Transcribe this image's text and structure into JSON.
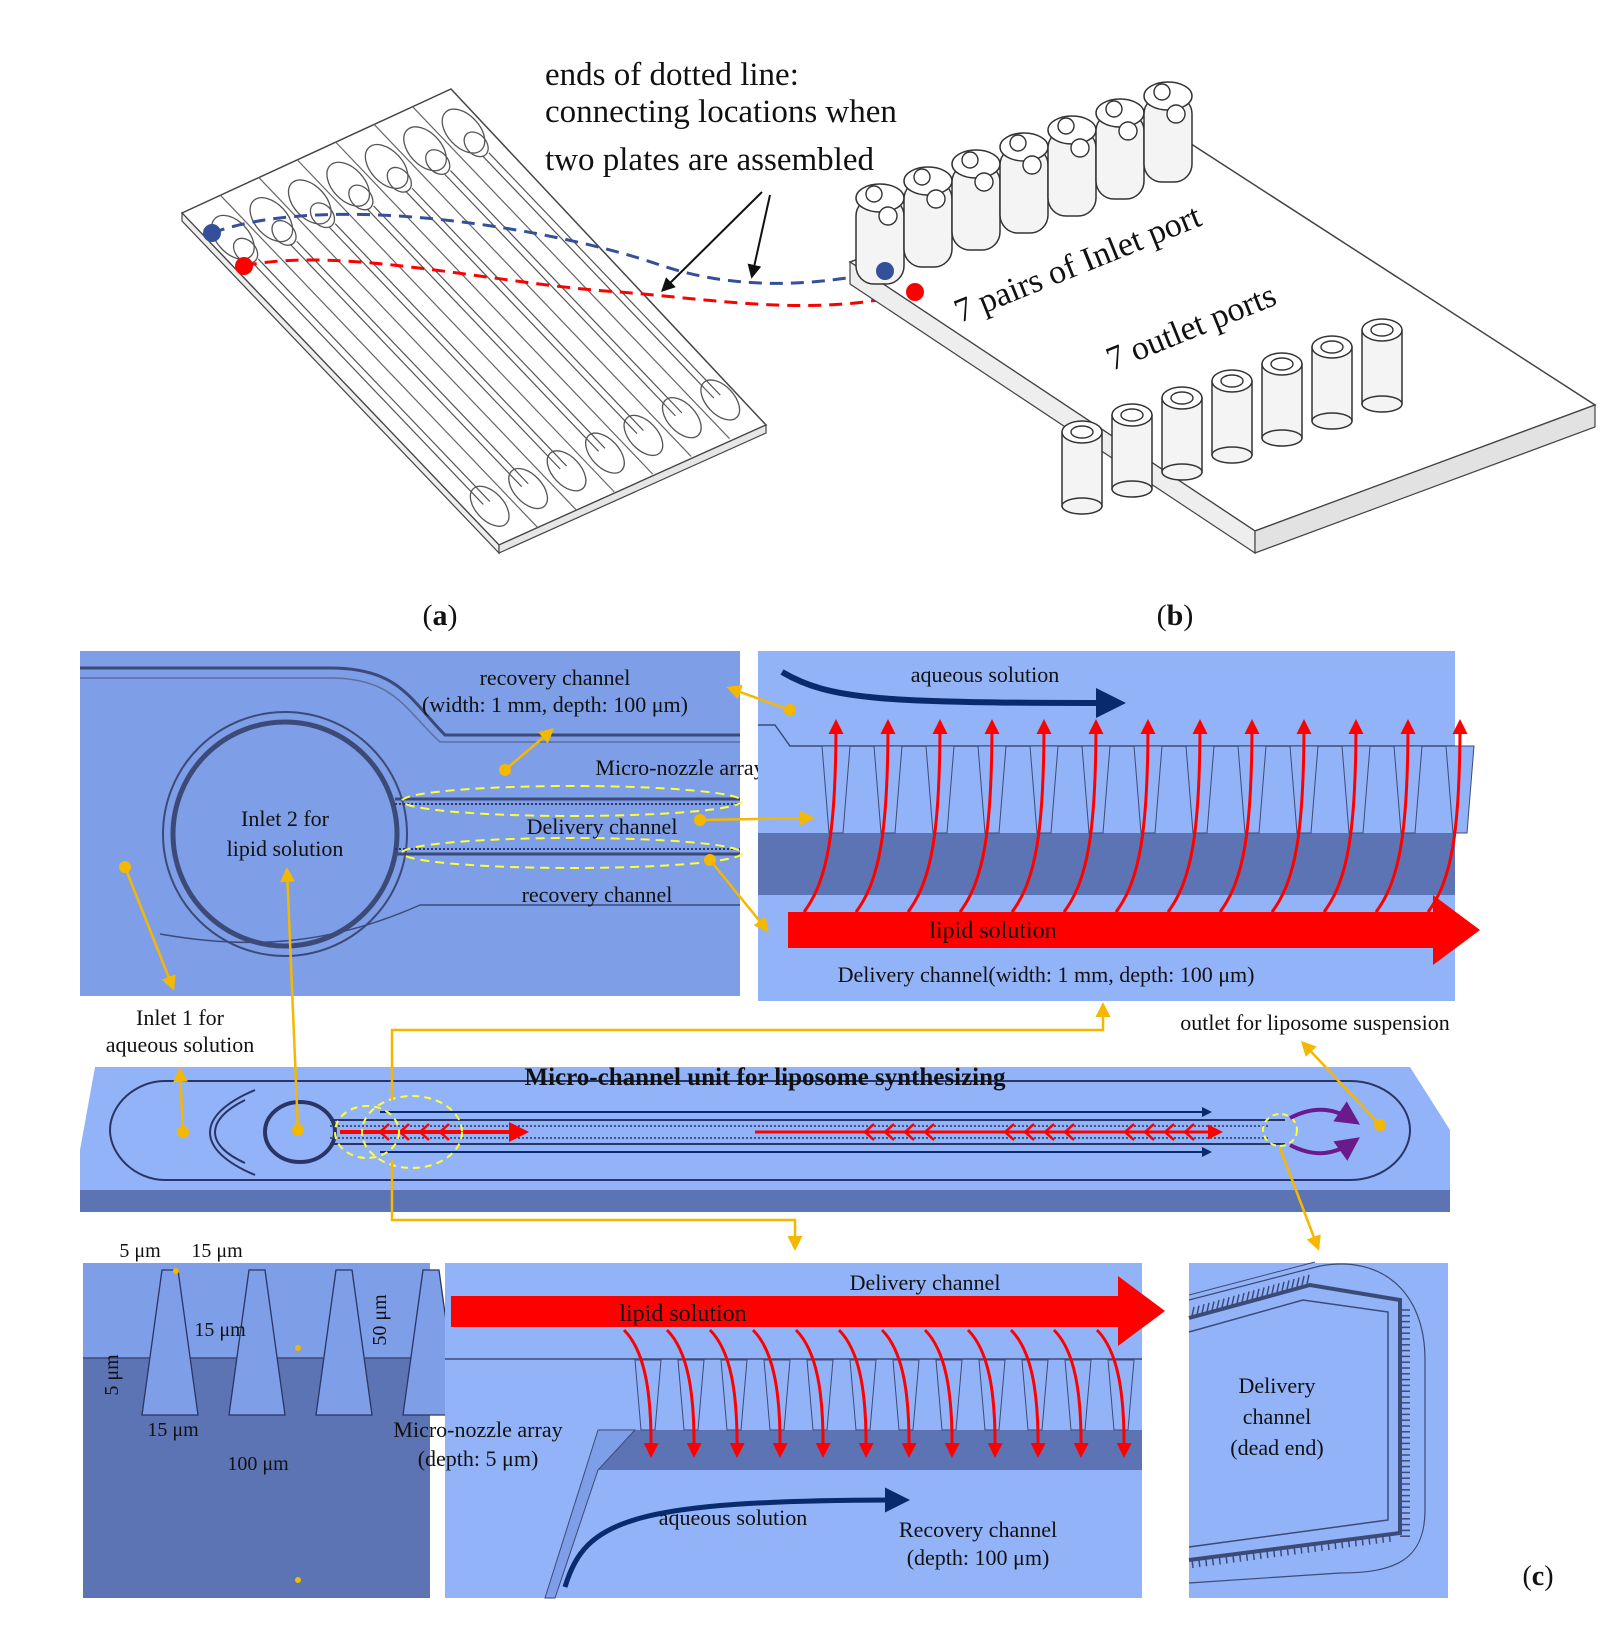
{
  "panel_a": {
    "annotation": [
      "ends of dotted line:",
      "connecting locations when",
      "two plates are assembled"
    ],
    "label_open": "(",
    "label_letter": "a",
    "label_close": ")"
  },
  "panel_b": {
    "inlet_text": "7 pairs of Inlet port",
    "outlet_text": "7 outlet ports",
    "label_open": "(",
    "label_letter": "b",
    "label_close": ")"
  },
  "panel_c": {
    "top_left": {
      "recovery_top_1": "recovery channel",
      "recovery_top_2": "(width: 1 mm, depth: 100 μm)",
      "micro_nozzle": "Micro-nozzle array",
      "inlet2_1": "Inlet 2 for",
      "inlet2_2": "lipid solution",
      "delivery": "Delivery channel",
      "recovery_bottom": "recovery channel"
    },
    "top_right": {
      "aqueous": "aqueous solution",
      "lipid": "lipid solution",
      "delivery": "Delivery channel(width: 1 mm, depth: 100 μm)"
    },
    "middle": {
      "inlet1_1": "Inlet 1 for",
      "inlet1_2": "aqueous solution",
      "outlet": "outlet for  liposome suspension",
      "title": "Micro-channel unit for liposome synthesizing"
    },
    "bottom_left": {
      "dim_5_top": "5 μm",
      "dim_15_top": "15 μm",
      "dim_15_mid": "15 μm",
      "dim_50": "50 μm",
      "dim_5_side": "5 μm",
      "dim_15_bottom": "15 μm",
      "dim_100": "100 μm"
    },
    "bottom_mid": {
      "delivery": "Delivery channel",
      "lipid": "lipid solution",
      "nozzle_1": "Micro-nozzle array",
      "nozzle_2": "(depth: 5 μm)",
      "aqueous": "aqueous solution",
      "recovery_1": "Recovery channel",
      "recovery_2": "(depth: 100 μm)"
    },
    "bottom_right": {
      "line1": "Delivery",
      "line2": "channel",
      "line3": "(dead end)"
    },
    "label_open": "(",
    "label_letter": "c",
    "label_close": ")"
  },
  "colors": {
    "panel_blue": "#7e9ee8",
    "light_blue": "#93b3f8",
    "dark_blue": "#5d74b4",
    "lipid_red": "#ff0000",
    "aqueous_navy": "#0a2a6e",
    "leader_yellow": "#f5b800",
    "marker_blue": "#34509a",
    "marker_red": "#ff0000",
    "outlet_purple": "#6b1a8c"
  }
}
